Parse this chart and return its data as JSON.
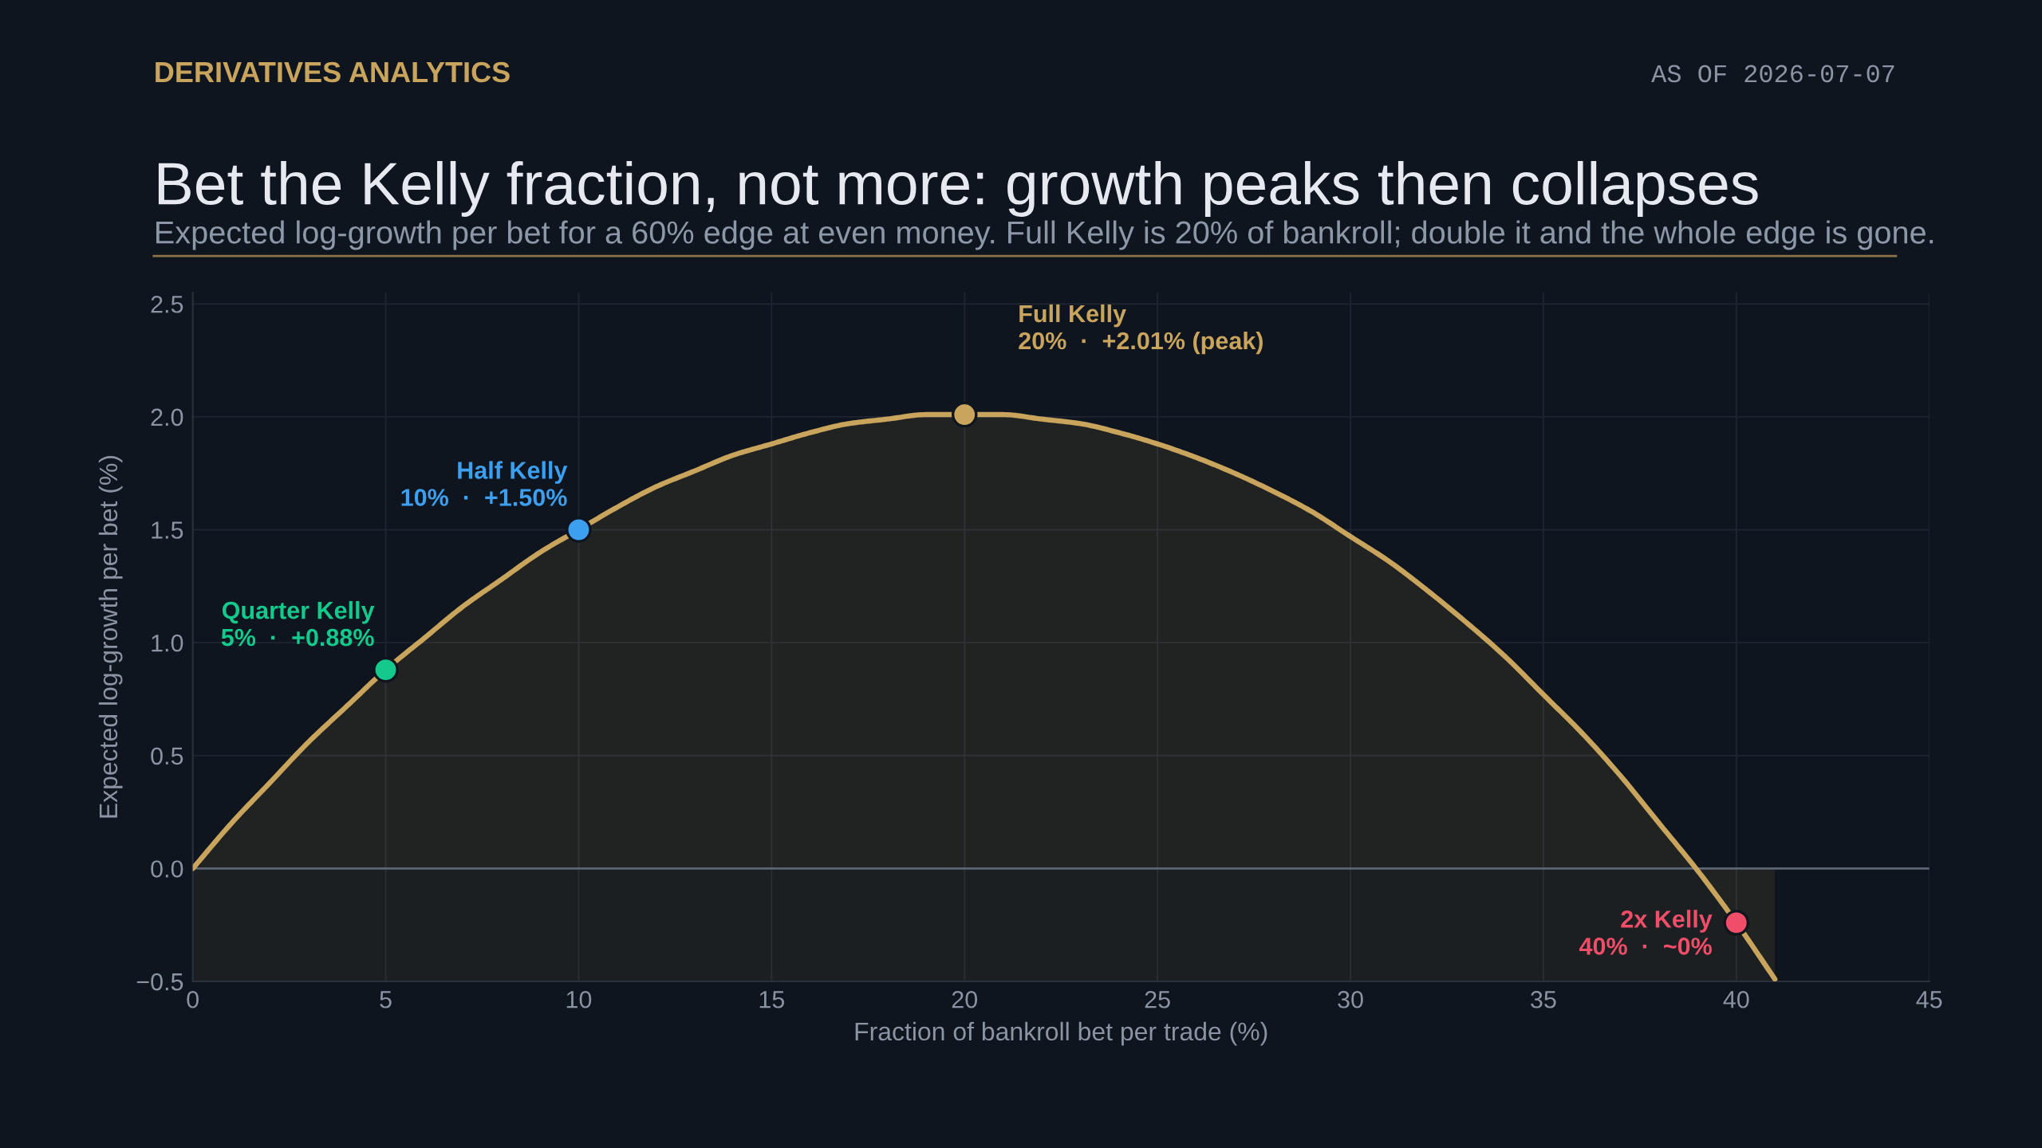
{
  "chart_data": {
    "type": "area",
    "title": "Bet the Kelly fraction, not more: growth peaks then collapses",
    "subtitle": "Expected log-growth per bet for a 60% edge at even money. Full Kelly is 20% of bankroll; double it and the whole edge is gone.",
    "xlabel": "Fraction of bankroll bet per trade (%)",
    "ylabel": "Expected log-growth per bet (%)",
    "annotations": [
      "DERIVATIVES ANALYTICS",
      "AS OF 2026-07-07"
    ],
    "x": [
      0,
      1,
      2,
      3,
      4,
      5,
      6,
      7,
      8,
      9,
      10,
      11,
      12,
      13,
      14,
      15,
      16,
      17,
      18,
      19,
      20,
      21,
      22,
      23,
      24,
      25,
      26,
      27,
      28,
      29,
      30,
      31,
      32,
      33,
      34,
      35,
      36,
      37,
      38,
      39,
      40,
      41
    ],
    "series": [
      {
        "color": "#c9a45c",
        "values": [
          0.0,
          0.2,
          0.38,
          0.56,
          0.72,
          0.88,
          1.02,
          1.16,
          1.28,
          1.4,
          1.5,
          1.6,
          1.69,
          1.76,
          1.83,
          1.88,
          1.93,
          1.97,
          1.99,
          2.01,
          2.01,
          2.01,
          1.99,
          1.97,
          1.93,
          1.88,
          1.82,
          1.75,
          1.67,
          1.58,
          1.47,
          1.36,
          1.23,
          1.09,
          0.94,
          0.77,
          0.6,
          0.41,
          0.2,
          -0.01,
          -0.24,
          -0.49
        ]
      },
      {
        "type": "scatter",
        "name": "Quarter Kelly",
        "color": "#13c98c",
        "marker": "circle",
        "x": [
          5
        ],
        "values": [
          0.88
        ],
        "value_labels": [
          "5%  ·  +0.88%"
        ]
      },
      {
        "type": "scatter",
        "name": "Half Kelly",
        "color": "#3d9ff0",
        "marker": "circle",
        "x": [
          10
        ],
        "values": [
          1.5
        ],
        "value_labels": [
          "10%  ·  +1.50%"
        ]
      },
      {
        "type": "scatter",
        "name": "Full Kelly",
        "color": "#c9a45c",
        "marker": "circle",
        "x": [
          20
        ],
        "values": [
          2.01
        ],
        "value_labels": [
          "20%  ·  +2.01% (peak)"
        ]
      },
      {
        "type": "scatter",
        "name": "2x Kelly",
        "color": "#f04e68",
        "marker": "circle",
        "x": [
          40
        ],
        "values": [
          -0.24
        ],
        "value_labels": [
          "40%  ·  ~0%"
        ]
      }
    ],
    "xlim": [
      0,
      45
    ],
    "xticks": [
      0,
      5,
      10,
      15,
      20,
      25,
      30,
      35,
      40,
      45
    ],
    "ylim": [
      -0.5,
      2.55
    ],
    "yticks": [
      {
        "value": -0.5,
        "label": "−0.5"
      },
      {
        "value": 0,
        "label": "0.0"
      },
      {
        "value": 0.5,
        "label": "0.5"
      },
      {
        "value": 1,
        "label": "1.0"
      },
      {
        "value": 1.5,
        "label": "1.5"
      },
      {
        "value": 2,
        "label": "2.0"
      },
      {
        "value": 2.5,
        "label": "2.5"
      }
    ],
    "ref_lines": [
      {
        "axis": "y",
        "value": 0,
        "color": "#5b6472"
      }
    ],
    "grid": true,
    "legend": false
  }
}
